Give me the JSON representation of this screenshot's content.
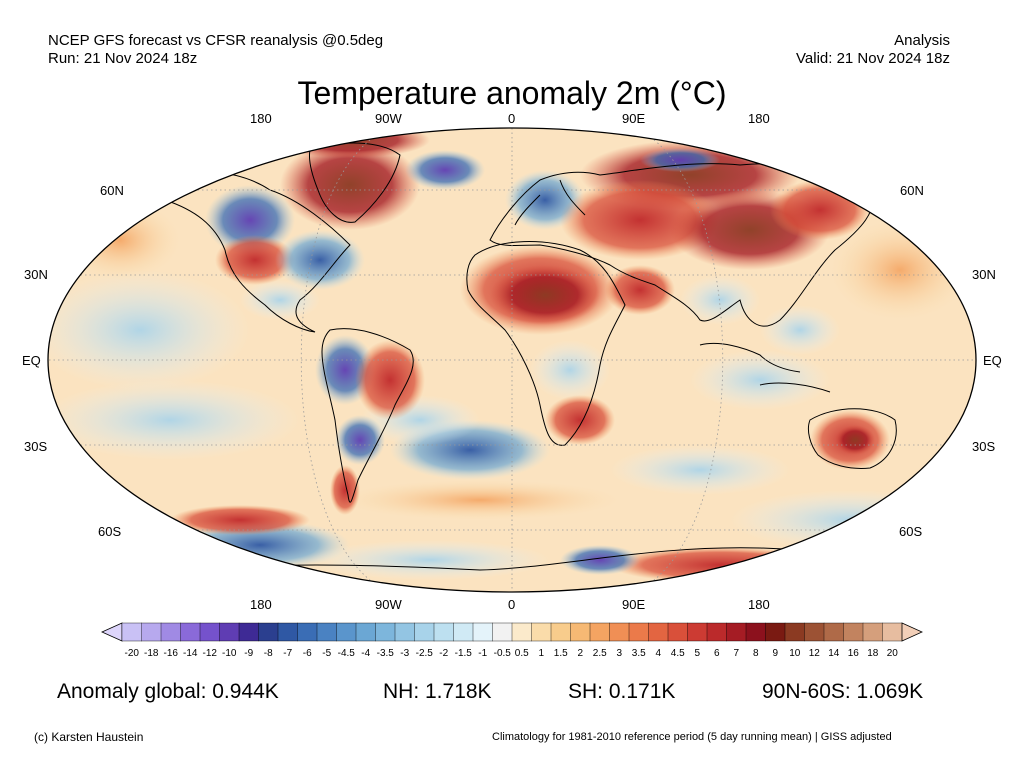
{
  "header": {
    "left_line1": "NCEP GFS forecast vs CFSR reanalysis @0.5deg",
    "left_line2": "Run: 21 Nov 2024 18z",
    "right_line1": "Analysis",
    "right_line2": "Valid: 21 Nov 2024 18z"
  },
  "title": "Temperature anomaly 2m (°C)",
  "longitude_labels": [
    "180",
    "90W",
    "0",
    "90E",
    "180"
  ],
  "latitude_labels": [
    "60N",
    "30N",
    "EQ",
    "30S",
    "60S"
  ],
  "colorbar": {
    "ticks": [
      "-20",
      "-18",
      "-16",
      "-14",
      "-12",
      "-10",
      "-9",
      "-8",
      "-7",
      "-6",
      "-5",
      "-4.5",
      "-4",
      "-3.5",
      "-3",
      "-2.5",
      "-2",
      "-1.5",
      "-1",
      "-0.5",
      "0.5",
      "1",
      "1.5",
      "2",
      "2.5",
      "3",
      "3.5",
      "4",
      "4.5",
      "5",
      "6",
      "7",
      "8",
      "9",
      "10",
      "12",
      "14",
      "16",
      "18",
      "20"
    ],
    "colors": [
      "#c9c1f5",
      "#b7a9ee",
      "#a08ae4",
      "#8a6ad9",
      "#7552cc",
      "#5f3db3",
      "#3e2a95",
      "#2b3f8f",
      "#2f58a4",
      "#3a6db5",
      "#4a82c2",
      "#5a95cc",
      "#6ba7d4",
      "#7db6dc",
      "#93c5e3",
      "#a8d3ea",
      "#bde0f0",
      "#d0eaf5",
      "#e4f3fa",
      "#f2f2f2",
      "#fbeacb",
      "#fadcaa",
      "#f8cc8c",
      "#f6b974",
      "#f4a462",
      "#f08f55",
      "#eb7a4a",
      "#e36541",
      "#d9503a",
      "#cc3b33",
      "#bb2a2b",
      "#a51c24",
      "#8c111d",
      "#7a1a12",
      "#8b3a22",
      "#9c5234",
      "#af6a48",
      "#c2835f",
      "#d59f7c",
      "#e7bda0"
    ]
  },
  "stats": {
    "global": "Anomaly global: 0.944K",
    "nh": "NH: 1.718K",
    "sh": "SH: 0.171K",
    "arctic": "90N-60S: 1.069K"
  },
  "footer": {
    "credit": "(c) Karsten Haustein",
    "note": "Climatology for 1981-2010 reference period (5 day running mean) | GISS adjusted"
  }
}
